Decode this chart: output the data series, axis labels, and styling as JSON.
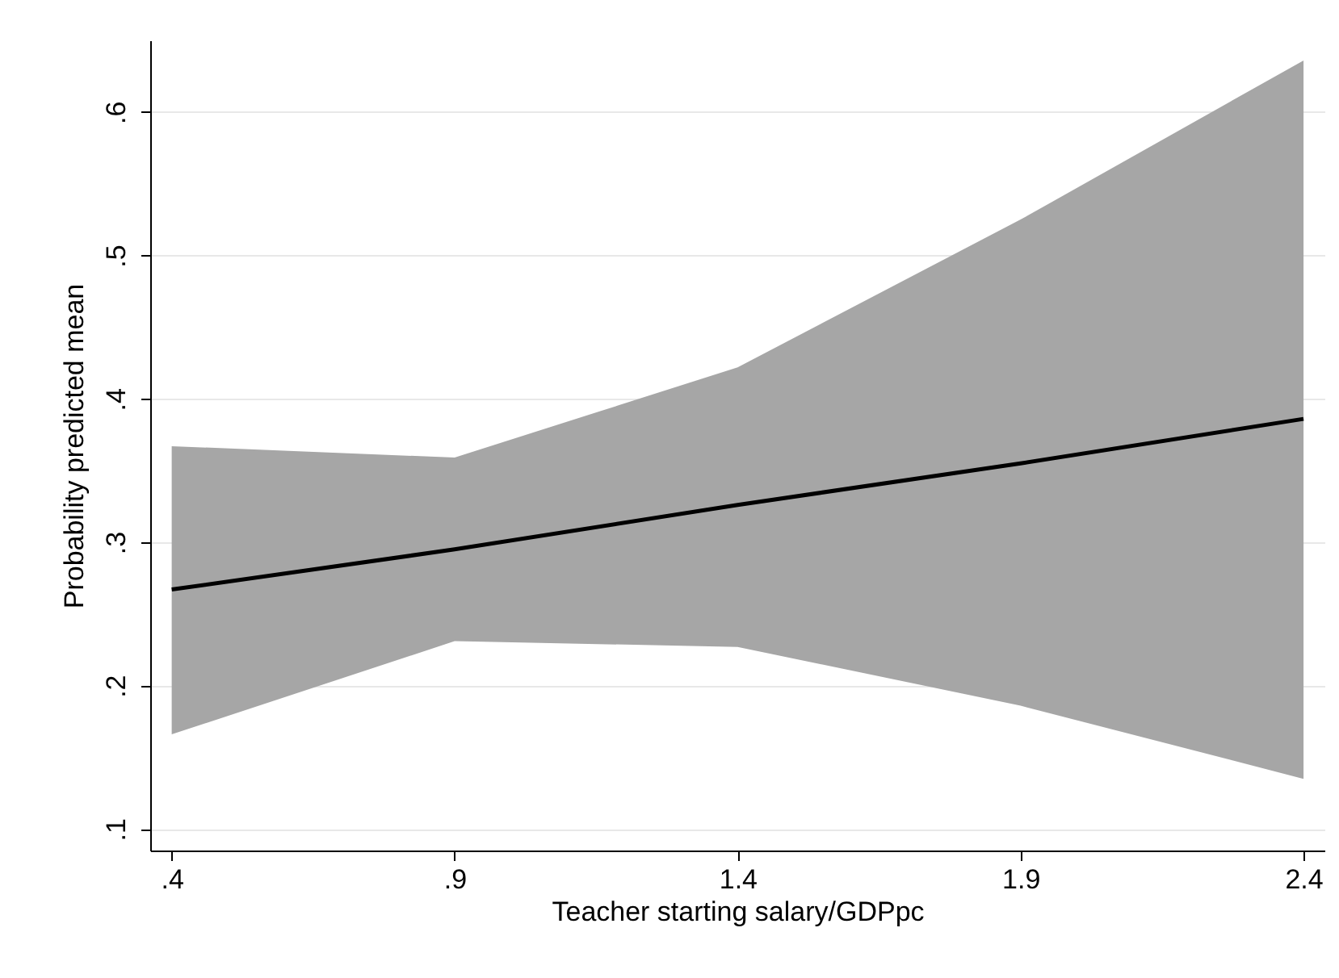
{
  "chart_data": {
    "type": "line",
    "xlabel": "Teacher starting salary/GDPpc",
    "ylabel": "Probability predicted mean",
    "x": [
      0.4,
      0.9,
      1.4,
      1.9,
      2.4
    ],
    "series": [
      {
        "color": "#000000",
        "values": [
          0.267,
          0.295,
          0.326,
          0.355,
          0.386
        ],
        "lower": [
          0.166,
          0.231,
          0.227,
          0.186,
          0.135
        ],
        "upper": [
          0.367,
          0.359,
          0.422,
          0.525,
          0.636
        ]
      }
    ],
    "xlim": [
      0.362,
      2.437
    ],
    "ylim": [
      0.085,
      0.65
    ],
    "xticks": [
      {
        "value": 0.4,
        "label": ".4"
      },
      {
        "value": 0.9,
        "label": ".9"
      },
      1.4,
      1.9,
      2.4
    ],
    "yticks": [
      {
        "value": 0.1,
        "label": ".1"
      },
      {
        "value": 0.2,
        "label": ".2"
      },
      {
        "value": 0.3,
        "label": ".3"
      },
      {
        "value": 0.4,
        "label": ".4"
      },
      {
        "value": 0.5,
        "label": ".5"
      },
      {
        "value": 0.6,
        "label": ".6"
      }
    ],
    "grid": "y",
    "marker": "none",
    "line_style": "solid"
  }
}
